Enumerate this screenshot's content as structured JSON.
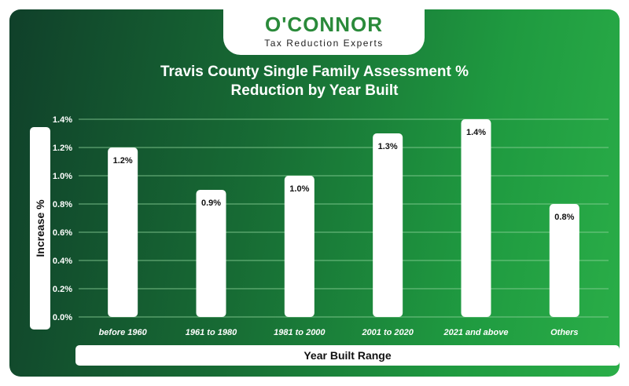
{
  "brand": {
    "name": "O'CONNOR",
    "tagline": "Tax Reduction Experts"
  },
  "chart_data": {
    "type": "bar",
    "title_lines": [
      "Travis County Single Family Assessment %",
      "Reduction by Year Built"
    ],
    "xlabel": "Year Built Range",
    "ylabel": "Increase %",
    "categories": [
      "before 1960",
      "1961 to 1980",
      "1981 to 2000",
      "2001 to 2020",
      "2021 and above",
      "Others"
    ],
    "values": [
      1.2,
      0.9,
      1.0,
      1.3,
      1.4,
      0.8
    ],
    "value_labels": [
      "1.2%",
      "0.9%",
      "1.0%",
      "1.3%",
      "1.4%",
      "0.8%"
    ],
    "yticks": [
      "0.0%",
      "0.2%",
      "0.4%",
      "0.6%",
      "0.8%",
      "1.0%",
      "1.2%",
      "1.4%"
    ],
    "ylim": [
      0,
      1.4
    ],
    "grid": true,
    "colors": {
      "bar": "#ffffff",
      "grid": "#8fd39b",
      "text": "#ffffff",
      "label": "#111111"
    }
  }
}
